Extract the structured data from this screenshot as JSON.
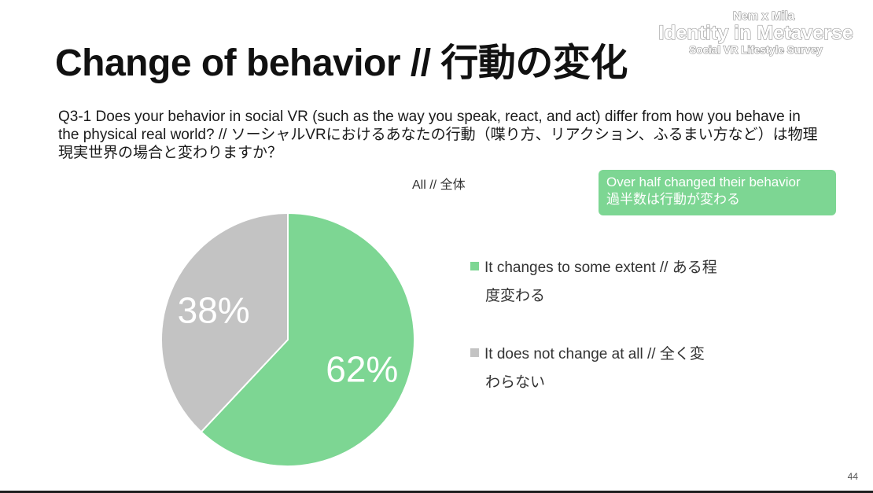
{
  "slide": {
    "title": "Change of behavior // 行動の変化",
    "page_number": "44"
  },
  "brand": {
    "line1": "Nem x Mila",
    "line2": "Identity in Metaverse",
    "line3": "Social VR Lifestyle Survey"
  },
  "question": "Q3-1 Does your behavior in social VR (such as the way you speak, react, and act) differ from how you behave in the physical real world? // ソーシャルVRにおけるあなたの行動（喋り方、リアクション、ふるまい方など）は物理現実世界の場合と変わりますか？",
  "callout": {
    "line1": "Over half changed their behavior",
    "line2": "過半数は行動が変わる",
    "color": "#7dd693"
  },
  "chart_data": {
    "type": "pie",
    "title": "All // 全体",
    "unit": "%",
    "slices": [
      {
        "label_line1": "It changes to some extent // ある程",
        "label_line2": "度変わる",
        "value": 62,
        "display": "62%",
        "color": "#7dd693"
      },
      {
        "label_line1": "It does not change at all // 全く変",
        "label_line2": "わらない",
        "value": 38,
        "display": "38%",
        "color": "#c3c3c3"
      }
    ],
    "start": "12 o'clock",
    "direction": "clockwise",
    "legend_position": "right"
  }
}
